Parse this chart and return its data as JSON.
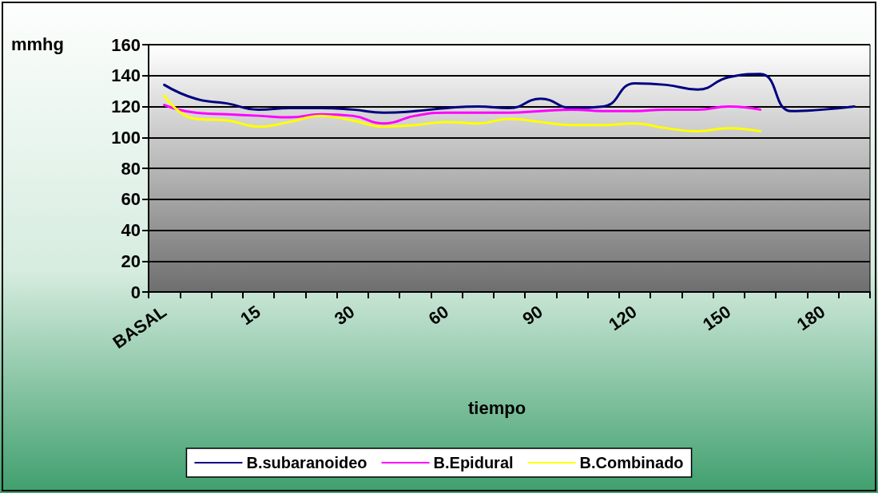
{
  "chart_data": {
    "type": "line",
    "ylabel": "mmhg",
    "xlabel": "tiempo",
    "categories": [
      "BASAL",
      null,
      null,
      "15",
      null,
      null,
      "30",
      null,
      null,
      "60",
      null,
      null,
      "90",
      null,
      null,
      "120",
      null,
      null,
      "150",
      null,
      null,
      "180",
      null
    ],
    "series": [
      {
        "name": "B.subaranoideo",
        "color": "#000080",
        "values": [
          134,
          125,
          122,
          118,
          119,
          119,
          118,
          116,
          117,
          119,
          120,
          119,
          125,
          119,
          120,
          135,
          134,
          131,
          139,
          141,
          117,
          118,
          120
        ]
      },
      {
        "name": "B.Epidural",
        "color": "#ff00ff",
        "values": [
          121,
          116,
          115,
          114,
          113,
          115,
          114,
          109,
          114,
          116,
          116,
          116,
          117,
          118,
          117,
          117,
          118,
          118,
          120,
          118,
          null,
          null,
          null
        ]
      },
      {
        "name": "B.Combinado",
        "color": "#ffff00",
        "values": [
          127,
          112,
          111,
          107,
          110,
          114,
          111,
          107,
          108,
          110,
          109,
          112,
          110,
          108,
          108,
          109,
          106,
          104,
          106,
          104,
          null,
          null,
          null
        ]
      }
    ],
    "ylim": [
      0,
      160
    ],
    "yticks": [
      0,
      20,
      40,
      60,
      80,
      100,
      120,
      140,
      160
    ],
    "grid": "y",
    "legend": "bottom",
    "marker": "none",
    "line_style": "solid"
  }
}
